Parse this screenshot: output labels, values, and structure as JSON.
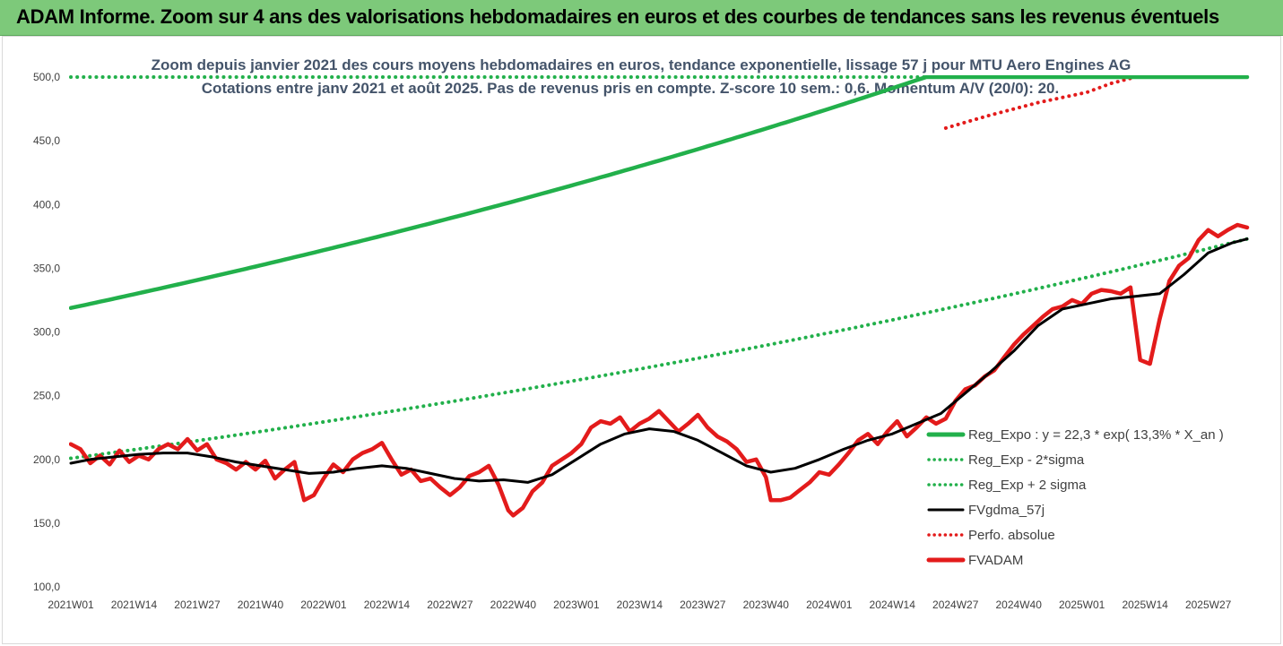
{
  "banner": {
    "title": "ADAM Informe. Zoom sur 4 ans des valorisations hebdomadaires en euros et des courbes de tendances sans les revenus éventuels"
  },
  "chart_data": {
    "type": "line",
    "title": "Zoom depuis janvier 2021 des cours moyens hebdomadaires en euros, tendance exponentielle, lissage 57 j pour MTU Aero Engines AG",
    "subtitle": "Cotations entre janv 2021 et août 2025. Pas de revenus pris en compte. Z-score 10 sem.: 0,6. Momentum A/V (20/0): 20.",
    "x_range": [
      1,
      243
    ],
    "ylim": [
      100,
      500
    ],
    "y_ticks": [
      "100,0",
      "150,0",
      "200,0",
      "250,0",
      "300,0",
      "350,0",
      "400,0",
      "450,0",
      "500,0"
    ],
    "y_tick_values": [
      100,
      150,
      200,
      250,
      300,
      350,
      400,
      450,
      500
    ],
    "x_tick_labels": [
      "2021W01",
      "2021W14",
      "2021W27",
      "2021W40",
      "2022W01",
      "2022W14",
      "2022W27",
      "2022W40",
      "2023W01",
      "2023W14",
      "2023W27",
      "2023W40",
      "2024W01",
      "2024W14",
      "2024W27",
      "2024W40",
      "2025W01",
      "2025W14",
      "2025W27"
    ],
    "x_tick_values": [
      1,
      14,
      27,
      40,
      53,
      66,
      79,
      92,
      105,
      118,
      131,
      144,
      157,
      170,
      183,
      196,
      209,
      222,
      235
    ],
    "grid": false,
    "legend_position": "right",
    "regression": {
      "a": 22.3,
      "rate": 0.133,
      "x_offset_years": 20.0
    },
    "series": [
      {
        "name": "Reg_Expo : y = 22,3 * exp( 13,3% *  X_an )",
        "key": "reg",
        "color": "#22b04b",
        "style": "solid"
      },
      {
        "name": "Reg_Exp - 2*sigma",
        "key": "lower",
        "color": "#22b04b",
        "style": "dotted"
      },
      {
        "name": "Reg_Exp + 2 sigma",
        "key": "upper",
        "color": "#22b04b",
        "style": "dotted"
      },
      {
        "name": "FVgdma_57j",
        "key": "ma",
        "color": "#000000",
        "style": "solid",
        "x": [
          1,
          5,
          10,
          15,
          20,
          25,
          30,
          35,
          40,
          45,
          50,
          55,
          60,
          65,
          70,
          75,
          80,
          85,
          90,
          95,
          100,
          105,
          110,
          115,
          120,
          125,
          130,
          135,
          140,
          145,
          150,
          155,
          160,
          165,
          170,
          175,
          180,
          185,
          190,
          195,
          200,
          205,
          210,
          215,
          220,
          225,
          230,
          235,
          240,
          243
        ],
        "y": [
          197,
          200,
          202,
          204,
          205,
          205,
          202,
          198,
          195,
          192,
          189,
          190,
          193,
          195,
          193,
          189,
          185,
          183,
          184,
          182,
          188,
          200,
          212,
          220,
          224,
          222,
          215,
          205,
          195,
          190,
          193,
          200,
          208,
          215,
          220,
          228,
          236,
          252,
          268,
          285,
          305,
          318,
          322,
          326,
          328,
          330,
          345,
          362,
          370,
          373
        ]
      },
      {
        "name": "Perfo. absolue",
        "key": "perf",
        "color": "#e31b1b",
        "style": "dotted",
        "x": [
          181,
          190,
          200,
          210,
          215,
          220,
          243
        ],
        "y": [
          460,
          470,
          480,
          488,
          495,
          500,
          500
        ]
      },
      {
        "name": "FVADAM",
        "key": "fv",
        "color": "#e31b1b",
        "style": "solid",
        "x": [
          1,
          3,
          5,
          7,
          9,
          11,
          13,
          15,
          17,
          19,
          21,
          23,
          25,
          27,
          29,
          31,
          33,
          35,
          37,
          39,
          41,
          43,
          45,
          47,
          49,
          51,
          53,
          55,
          57,
          59,
          61,
          63,
          65,
          67,
          69,
          71,
          73,
          75,
          77,
          79,
          81,
          83,
          85,
          87,
          89,
          91,
          92,
          94,
          96,
          98,
          100,
          102,
          104,
          106,
          108,
          110,
          112,
          114,
          116,
          118,
          120,
          122,
          124,
          126,
          128,
          130,
          132,
          134,
          136,
          138,
          140,
          142,
          144,
          145,
          147,
          149,
          151,
          153,
          155,
          157,
          159,
          161,
          163,
          165,
          167,
          169,
          171,
          173,
          175,
          177,
          179,
          181,
          183,
          185,
          187,
          189,
          191,
          193,
          195,
          197,
          199,
          201,
          203,
          205,
          207,
          209,
          211,
          213,
          215,
          217,
          219,
          221,
          223,
          225,
          227,
          229,
          231,
          233,
          235,
          237,
          239,
          241,
          243
        ],
        "y": [
          212,
          208,
          197,
          203,
          196,
          207,
          198,
          203,
          200,
          208,
          212,
          208,
          216,
          207,
          212,
          200,
          197,
          192,
          198,
          192,
          199,
          185,
          192,
          198,
          168,
          172,
          185,
          196,
          190,
          200,
          205,
          208,
          213,
          200,
          188,
          192,
          183,
          185,
          178,
          172,
          178,
          187,
          190,
          195,
          180,
          160,
          156,
          162,
          175,
          182,
          195,
          200,
          205,
          212,
          225,
          230,
          228,
          233,
          222,
          228,
          232,
          238,
          230,
          222,
          228,
          235,
          225,
          218,
          214,
          208,
          198,
          200,
          186,
          168,
          168,
          170,
          176,
          182,
          190,
          188,
          196,
          205,
          215,
          220,
          212,
          222,
          230,
          218,
          225,
          233,
          228,
          232,
          246,
          255,
          258,
          265,
          270,
          280,
          290,
          298,
          305,
          312,
          318,
          320,
          325,
          322,
          330,
          333,
          332,
          330,
          335,
          278,
          275,
          310,
          340,
          352,
          358,
          372,
          380,
          375,
          380,
          384,
          382
        ]
      }
    ]
  }
}
